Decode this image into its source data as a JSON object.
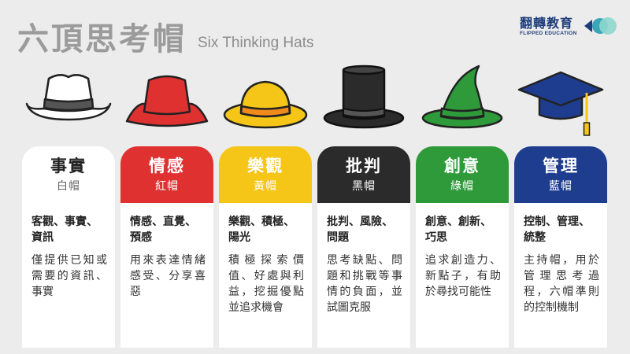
{
  "header": {
    "title": "六頂思考帽",
    "subtitle": "Six Thinking Hats"
  },
  "brand": {
    "name": "翻轉教育",
    "english": "FLIPPED EDUCATION",
    "colors": {
      "text": "#1f3d7a",
      "dark": "#1f3d7a",
      "teal": "#3aa6b8",
      "light": "#8fd8cf"
    }
  },
  "cards": [
    {
      "name": "事實",
      "sub": "白帽",
      "keywords": "客觀、事實、資訊",
      "description": "僅提供已知或需要的資訊、事實",
      "color": "#ffffff",
      "text_color": "#222222",
      "sub_color": "#666666",
      "icon": "white-cowboy-hat-icon"
    },
    {
      "name": "情感",
      "sub": "紅帽",
      "keywords": "情感、直覺、預感",
      "description": "用來表達情緒感受、分享喜惡",
      "color": "#e03131",
      "text_color": "#ffffff",
      "sub_color": "#ffffff",
      "icon": "red-bucket-hat-icon"
    },
    {
      "name": "樂觀",
      "sub": "黃帽",
      "keywords": "樂觀、積極、陽光",
      "description": "積極探索價值、好處與利益，挖掘優點並追求機會",
      "color": "#f5c518",
      "text_color": "#ffffff",
      "sub_color": "#ffffff",
      "icon": "yellow-sun-hat-icon"
    },
    {
      "name": "批判",
      "sub": "黑帽",
      "keywords": "批判、風險、問題",
      "description": "思考缺點、問題和挑戰等事情的負面，並試圖克服",
      "color": "#2b2b2b",
      "text_color": "#ffffff",
      "sub_color": "#ffffff",
      "icon": "black-top-hat-icon"
    },
    {
      "name": "創意",
      "sub": "綠帽",
      "keywords": "創意、創新、巧思",
      "description": "追求創造力、新點子，有助於尋找可能性",
      "color": "#2e9a3a",
      "text_color": "#ffffff",
      "sub_color": "#ffffff",
      "icon": "green-witch-hat-icon"
    },
    {
      "name": "管理",
      "sub": "藍帽",
      "keywords": "控制、管理、統整",
      "description": "主持帽，用於管理思考過程，六帽準則的控制機制",
      "color": "#1f3d8f",
      "text_color": "#ffffff",
      "sub_color": "#ffffff",
      "icon": "blue-graduation-cap-icon"
    }
  ]
}
